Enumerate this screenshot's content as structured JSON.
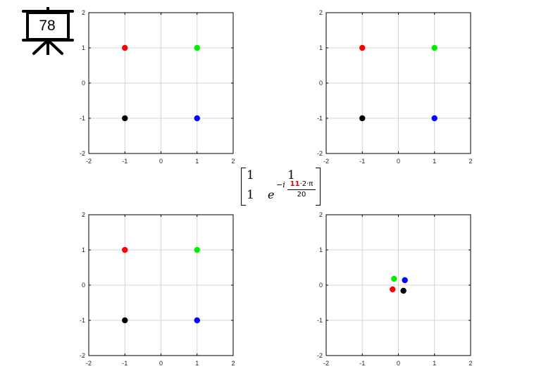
{
  "slide_number": "78",
  "matrix": {
    "a11": "1",
    "a12": "1",
    "a21": "1",
    "a22_base": "e",
    "a22_exp_prefix": "−i",
    "a22_num_highlight": "11",
    "a22_num_rest": "·2·π",
    "a22_den": "20"
  },
  "chart_data": [
    {
      "type": "scatter",
      "xlim": [
        -2,
        2
      ],
      "ylim": [
        -2,
        2
      ],
      "xticks": [
        "-2",
        "-1",
        "0",
        "1",
        "2"
      ],
      "yticks": [
        "-2",
        "-1",
        "0",
        "1",
        "2"
      ],
      "grid": true,
      "points": [
        {
          "x": -1,
          "y": 1,
          "color": "#ff0000"
        },
        {
          "x": 1,
          "y": 1,
          "color": "#00ee00"
        },
        {
          "x": -1,
          "y": -1,
          "color": "#000000"
        },
        {
          "x": 1,
          "y": -1,
          "color": "#0000ff"
        }
      ]
    },
    {
      "type": "scatter",
      "xlim": [
        -2,
        2
      ],
      "ylim": [
        -2,
        2
      ],
      "xticks": [
        "-2",
        "-1",
        "0",
        "1",
        "2"
      ],
      "yticks": [
        "-2",
        "-1",
        "0",
        "1",
        "2"
      ],
      "grid": true,
      "points": [
        {
          "x": -1,
          "y": 1,
          "color": "#ff0000"
        },
        {
          "x": 1,
          "y": 1,
          "color": "#00ee00"
        },
        {
          "x": -1,
          "y": -1,
          "color": "#000000"
        },
        {
          "x": 1,
          "y": -1,
          "color": "#0000ff"
        }
      ]
    },
    {
      "type": "scatter",
      "xlim": [
        -2,
        2
      ],
      "ylim": [
        -2,
        2
      ],
      "xticks": [
        "-2",
        "-1",
        "0",
        "1",
        "2"
      ],
      "yticks": [
        "-2",
        "-1",
        "0",
        "1",
        "2"
      ],
      "grid": true,
      "points": [
        {
          "x": -1,
          "y": 1,
          "color": "#ff0000"
        },
        {
          "x": 1,
          "y": 1,
          "color": "#00ee00"
        },
        {
          "x": -1,
          "y": -1,
          "color": "#000000"
        },
        {
          "x": 1,
          "y": -1,
          "color": "#0000ff"
        }
      ]
    },
    {
      "type": "scatter",
      "xlim": [
        -2,
        2
      ],
      "ylim": [
        -2,
        2
      ],
      "xticks": [
        "-2",
        "-1",
        "0",
        "1",
        "2"
      ],
      "yticks": [
        "-2",
        "-1",
        "0",
        "1",
        "2"
      ],
      "grid": true,
      "points": [
        {
          "x": -0.16,
          "y": -0.12,
          "color": "#ff0000"
        },
        {
          "x": -0.12,
          "y": 0.18,
          "color": "#00ee00"
        },
        {
          "x": 0.14,
          "y": -0.16,
          "color": "#000000"
        },
        {
          "x": 0.18,
          "y": 0.14,
          "color": "#0000ff"
        }
      ]
    }
  ]
}
